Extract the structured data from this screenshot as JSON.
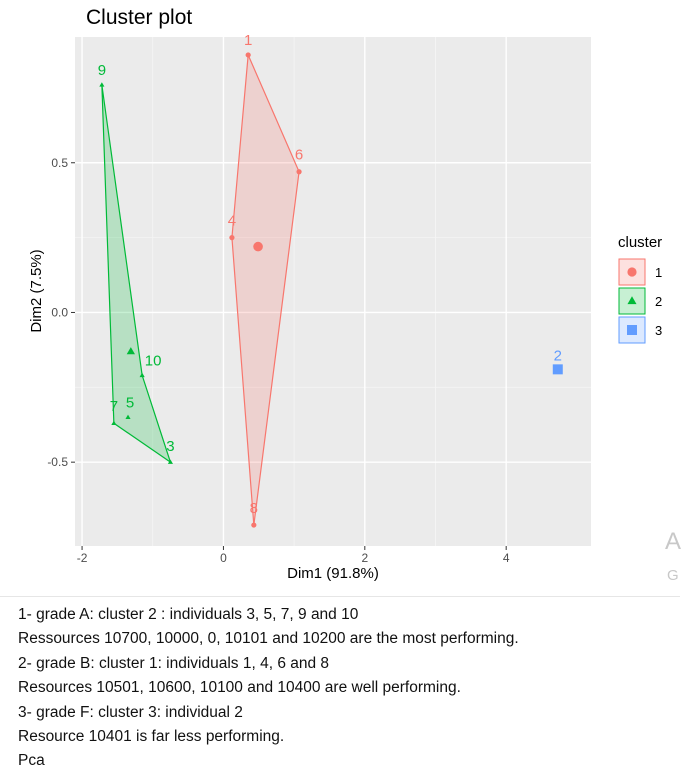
{
  "chart_data": {
    "type": "scatter",
    "title": "Cluster plot",
    "xlabel": "Dim1 (91.8%)",
    "ylabel": "Dim2 (7.5%)",
    "xlim": [
      -2.1,
      5.2
    ],
    "ylim": [
      -0.78,
      0.92
    ],
    "xticks": [
      -2,
      0,
      2,
      4
    ],
    "yticks": [
      -0.5,
      0.0,
      0.5
    ],
    "xtick_labels": [
      "-2",
      "0",
      "2",
      "4"
    ],
    "ytick_labels": [
      "-0.5",
      "0.0",
      "0.5"
    ],
    "grid": true,
    "legend": {
      "title": "cluster",
      "position": "right",
      "entries": [
        "1",
        "2",
        "3"
      ]
    },
    "series": [
      {
        "name": "1",
        "color": "#f8766d",
        "marker": "circle",
        "points": [
          {
            "label": "1",
            "x": 0.35,
            "y": 0.86
          },
          {
            "label": "6",
            "x": 1.07,
            "y": 0.47
          },
          {
            "label": "4",
            "x": 0.12,
            "y": 0.25
          },
          {
            "label": "8",
            "x": 0.43,
            "y": -0.71
          }
        ],
        "hull": [
          "1",
          "6",
          "8",
          "4"
        ],
        "centroid": {
          "x": 0.49,
          "y": 0.22
        }
      },
      {
        "name": "2",
        "color": "#00ba38",
        "marker": "triangle",
        "points": [
          {
            "label": "9",
            "x": -1.72,
            "y": 0.76
          },
          {
            "label": "10",
            "x": -1.15,
            "y": -0.21
          },
          {
            "label": "7",
            "x": -1.55,
            "y": -0.37
          },
          {
            "label": "5",
            "x": -1.35,
            "y": -0.35
          },
          {
            "label": "3",
            "x": -0.75,
            "y": -0.5
          }
        ],
        "hull": [
          "9",
          "10",
          "3",
          "7"
        ],
        "centroid": {
          "x": -1.31,
          "y": -0.13
        }
      },
      {
        "name": "3",
        "color": "#619cff",
        "marker": "square",
        "points": [
          {
            "label": "2",
            "x": 4.73,
            "y": -0.19
          }
        ],
        "hull": [],
        "centroid": null
      }
    ]
  },
  "notes": [
    "1- grade A: cluster 2 : individuals 3, 5, 7, 9 and 10",
    "Ressources 10700, 10000, 0, 10101 and 10200 are the most performing.",
    "2- grade B: cluster 1: individuals 1, 4, 6 and 8",
    "Resources 10501, 10600, 10100 and 10400 are well performing.",
    "3- grade F: cluster 3: individual 2",
    "Resource 10401 is far less performing.",
    "Pca"
  ]
}
